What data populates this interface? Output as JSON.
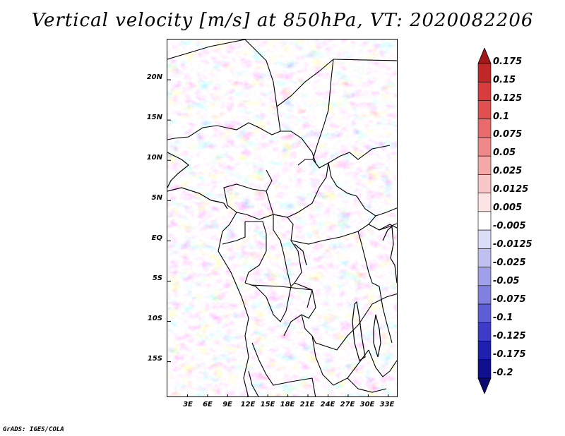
{
  "title": "Vertical velocity [m/s] at 850hPa, VT: 2020082206",
  "lat_labels": [
    "20N",
    "15N",
    "10N",
    "5N",
    "EQ",
    "5S",
    "10S",
    "15S"
  ],
  "lat_values": [
    20,
    15,
    10,
    5,
    0,
    -5,
    -10,
    -15
  ],
  "lon_labels": [
    "3E",
    "6E",
    "9E",
    "12E",
    "15E",
    "18E",
    "21E",
    "24E",
    "27E",
    "30E",
    "33E"
  ],
  "lon_values": [
    3,
    6,
    9,
    12,
    15,
    18,
    21,
    24,
    27,
    30,
    33
  ],
  "map_extent": {
    "lon_min": 0,
    "lon_max": 34.5,
    "lat_min": -19.5,
    "lat_max": 25
  },
  "colorbar": {
    "labels": [
      "0.175",
      "0.15",
      "0.125",
      "0.1",
      "0.075",
      "0.05",
      "0.025",
      "0.0125",
      "0.005",
      "-0.005",
      "-0.0125",
      "-0.025",
      "-0.05",
      "-0.075",
      "-0.1",
      "-0.125",
      "-0.175",
      "-0.2"
    ],
    "colors": [
      "#a01818",
      "#c02828",
      "#d83c3c",
      "#e05050",
      "#e86a6a",
      "#ef8888",
      "#f4a8a8",
      "#f8c8c8",
      "#fce4e4",
      "#ffffff",
      "#dcdcf8",
      "#c0c0f0",
      "#a0a0ea",
      "#8080e0",
      "#5e5ed6",
      "#3c3cc8",
      "#2020b0",
      "#10108e",
      "#0a0a70"
    ]
  },
  "credit": "GrADS: IGES/COLA"
}
